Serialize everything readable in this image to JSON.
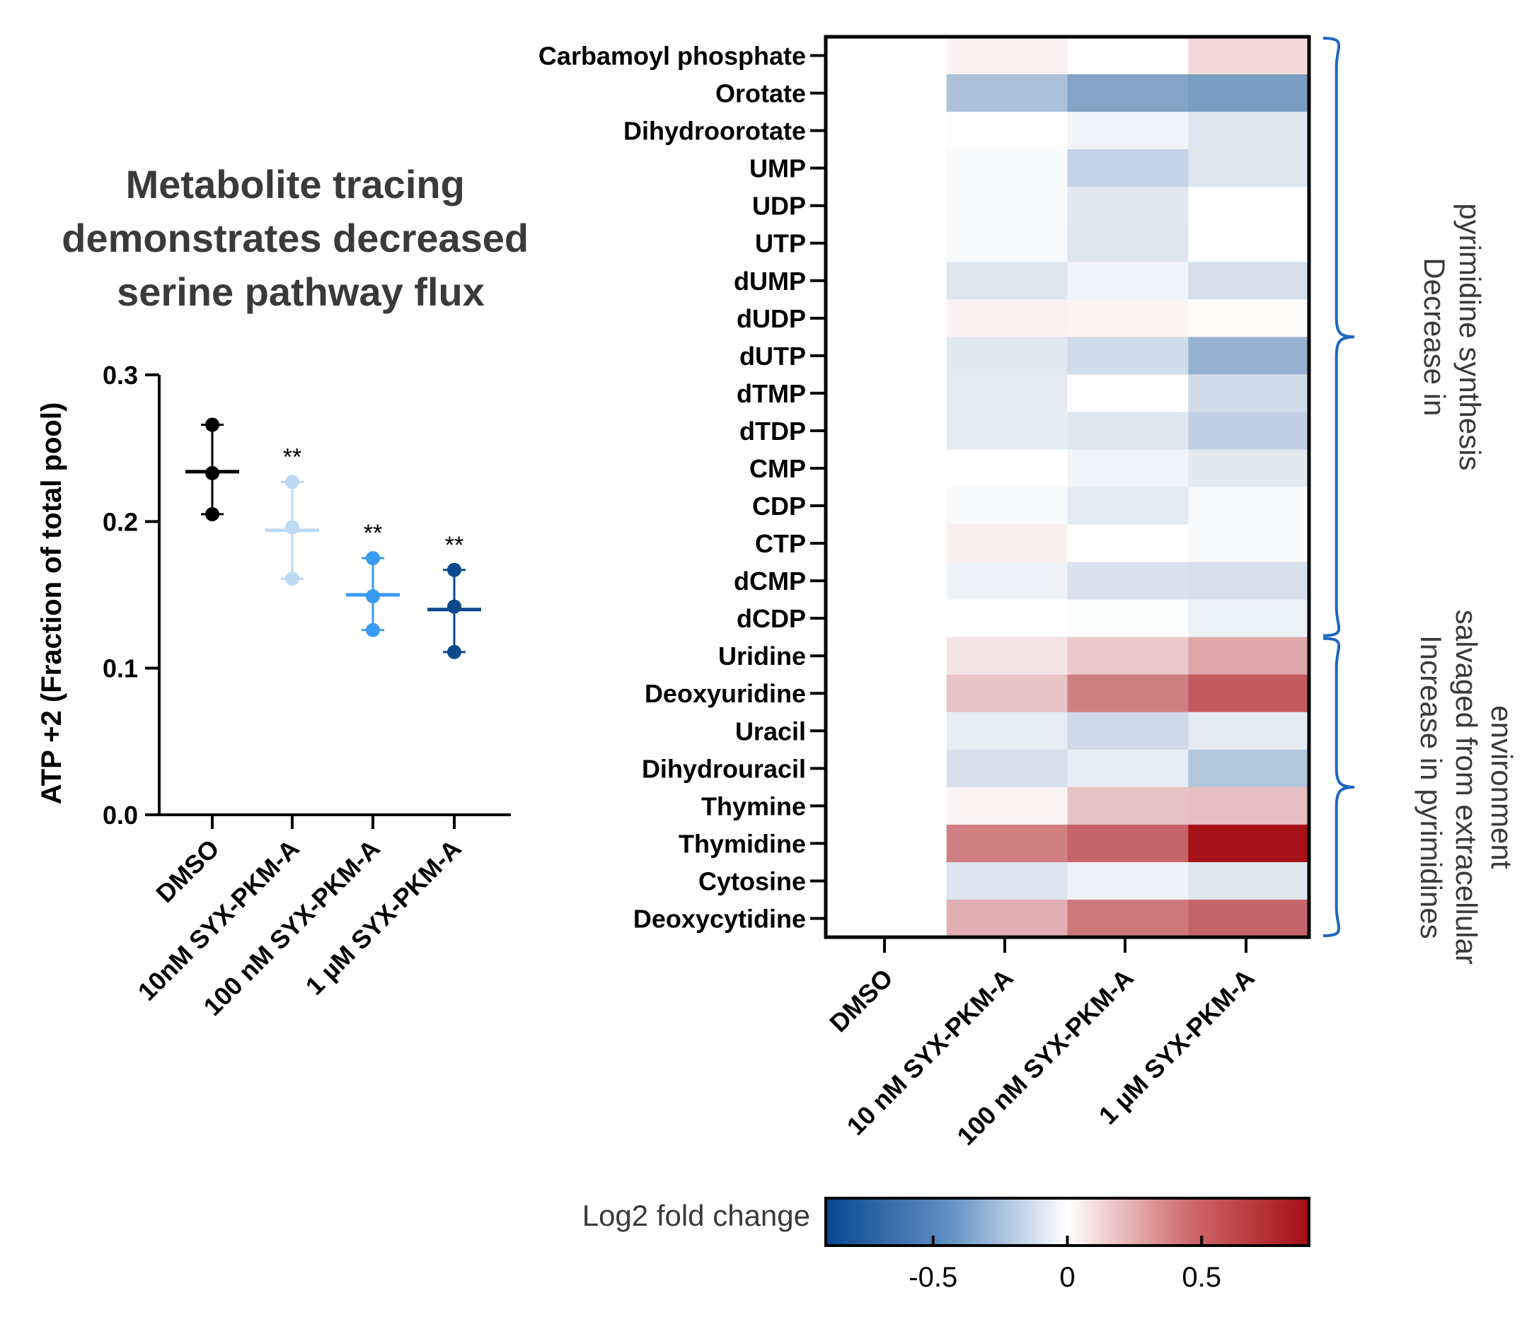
{
  "colors": {
    "negative": "#08478f",
    "neutral": "#ffffff",
    "positive": "#a50e14",
    "bracket": "#1f66c2",
    "text_dark": "#3a3a3a",
    "axis": "#000000",
    "series": [
      "#000000",
      "#bdd9f6",
      "#3a9bf2",
      "#0a4a8a"
    ]
  },
  "chart_data": [
    {
      "type": "scatter",
      "title": "Metabolite tracing demonstrates decreased serine pathway flux",
      "title_lines": [
        "Metabolite tracing",
        "demonstrates decreased",
        "serine pathway flux"
      ],
      "ylabel": "ATP +2 (Fraction of total pool)",
      "ylim": [
        0,
        0.3
      ],
      "yticks": [
        "0.0",
        "0.1",
        "0.2",
        "0.3"
      ],
      "ytick_values": [
        0,
        0.1,
        0.2,
        0.3
      ],
      "grid": false,
      "categories": [
        "DMSO",
        "10nM SYX-PKM-A",
        "100 nM SYX-PKM-A",
        "1 µM SYX-PKM-A"
      ],
      "groups": [
        {
          "category": "DMSO",
          "points": [
            0.266,
            0.233,
            0.205
          ],
          "mean": 0.234,
          "err_low": 0.205,
          "err_high": 0.266,
          "annotation": ""
        },
        {
          "category": "10nM SYX-PKM-A",
          "points": [
            0.227,
            0.196,
            0.161
          ],
          "mean": 0.194,
          "err_low": 0.161,
          "err_high": 0.227,
          "annotation": "**"
        },
        {
          "category": "100 nM SYX-PKM-A",
          "points": [
            0.175,
            0.149,
            0.126
          ],
          "mean": 0.15,
          "err_low": 0.126,
          "err_high": 0.175,
          "annotation": "**"
        },
        {
          "category": "1 µM SYX-PKM-A",
          "points": [
            0.167,
            0.142,
            0.111
          ],
          "mean": 0.14,
          "err_low": 0.111,
          "err_high": 0.167,
          "annotation": "**"
        }
      ]
    },
    {
      "type": "heatmap",
      "columns": [
        "DMSO",
        "10 nM SYX-PKM-A",
        "100 nM SYX-PKM-A",
        "1 µM SYX-PKM-A"
      ],
      "rows": [
        "Carbamoyl phosphate",
        "Orotate",
        "Dihydroorotate",
        "UMP",
        "UDP",
        "UTP",
        "dUMP",
        "dUDP",
        "dUTP",
        "dTMP",
        "dTDP",
        "CMP",
        "CDP",
        "CTP",
        "dCMP",
        "dCDP",
        "Uridine",
        "Deoxyuridine",
        "Uracil",
        "Dihydrouracil",
        "Thymine",
        "Thymidine",
        "Cytosine",
        "Deoxycytidine"
      ],
      "values": [
        [
          0,
          0.05,
          0,
          0.14
        ],
        [
          0,
          -0.3,
          -0.45,
          -0.48
        ],
        [
          0,
          0.01,
          -0.05,
          -0.12
        ],
        [
          0,
          -0.03,
          -0.22,
          -0.12
        ],
        [
          0,
          -0.03,
          -0.11,
          0
        ],
        [
          0,
          -0.03,
          -0.12,
          0
        ],
        [
          0,
          -0.12,
          -0.05,
          -0.15
        ],
        [
          0,
          0.05,
          0.04,
          0.02
        ],
        [
          0,
          -0.11,
          -0.17,
          -0.38
        ],
        [
          0,
          -0.1,
          0.01,
          -0.17
        ],
        [
          0,
          -0.1,
          -0.12,
          -0.23
        ],
        [
          0,
          0,
          -0.05,
          -0.11
        ],
        [
          0,
          -0.03,
          -0.1,
          -0.03
        ],
        [
          0,
          0.06,
          0,
          -0.03
        ],
        [
          0,
          -0.06,
          -0.14,
          -0.15
        ],
        [
          0,
          0,
          -0.01,
          -0.07
        ],
        [
          0,
          0.1,
          0.2,
          0.33
        ],
        [
          0,
          0.22,
          0.48,
          0.62
        ],
        [
          0,
          -0.09,
          -0.18,
          -0.1
        ],
        [
          0,
          -0.15,
          -0.09,
          -0.28
        ],
        [
          0,
          0.04,
          0.22,
          0.24
        ],
        [
          0,
          0.48,
          0.58,
          0.88
        ],
        [
          0,
          -0.13,
          -0.06,
          -0.12
        ],
        [
          0,
          0.3,
          0.5,
          0.58
        ]
      ],
      "colorbar": {
        "label": "Log2 fold change",
        "range": [
          -0.9,
          0.9
        ],
        "ticks": [
          "-0.5",
          "0",
          "0.5"
        ],
        "tick_values": [
          -0.5,
          0,
          0.5
        ]
      },
      "annotations": [
        {
          "lines": [
            "Decrease in",
            "pyrimidine synthesis"
          ],
          "row_start": 0,
          "row_end": 15
        },
        {
          "lines": [
            "Increase in pyrimidines",
            "salvaged from extracellular",
            "environment"
          ],
          "row_start": 16,
          "row_end": 23
        }
      ]
    }
  ]
}
